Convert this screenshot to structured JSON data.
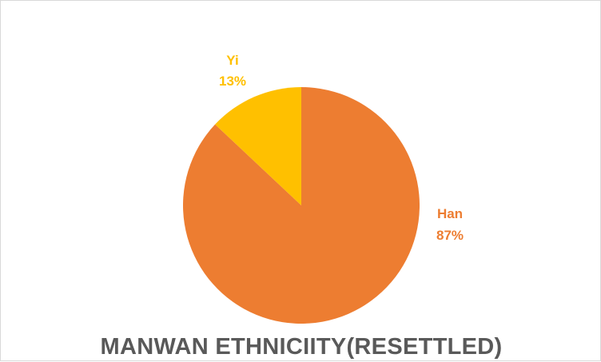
{
  "chart_data": {
    "type": "pie",
    "title": "MANWAN ETHNICIITY(RESETTLED)",
    "slices": [
      {
        "name": "Han",
        "value": 87,
        "label": "87%",
        "color": "#ed7d31"
      },
      {
        "name": "Yi",
        "value": 13,
        "label": "13%",
        "color": "#ffc000"
      }
    ],
    "start_angle_deg": 0,
    "direction": "clockwise",
    "legend": "none"
  }
}
